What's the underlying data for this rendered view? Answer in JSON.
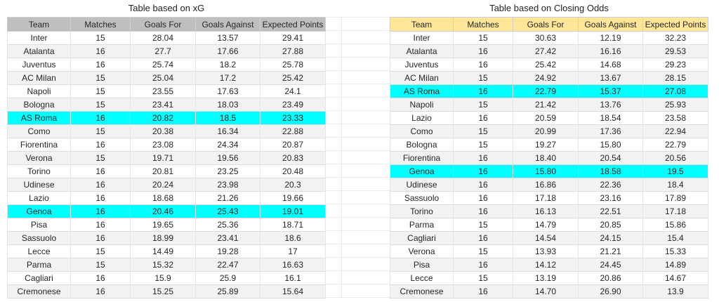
{
  "highlight_color": "#00ffff",
  "band_color": "#f2f2f2",
  "tables": [
    {
      "title": "Table based on xG",
      "header_bg": "#bfbfbf",
      "columns": [
        "Team",
        "Matches",
        "Goals For",
        "Goals Against",
        "Expected Points"
      ],
      "rows": [
        {
          "cells": [
            "Inter",
            "15",
            "28.04",
            "13.57",
            "29.41"
          ],
          "highlight": false
        },
        {
          "cells": [
            "Atalanta",
            "16",
            "27.7",
            "17.66",
            "27.88"
          ],
          "highlight": false
        },
        {
          "cells": [
            "Juventus",
            "16",
            "25.74",
            "18.2",
            "25.78"
          ],
          "highlight": false
        },
        {
          "cells": [
            "AC Milan",
            "15",
            "25.04",
            "17.2",
            "25.42"
          ],
          "highlight": false
        },
        {
          "cells": [
            "Napoli",
            "15",
            "23.55",
            "17.63",
            "24.1"
          ],
          "highlight": false
        },
        {
          "cells": [
            "Bologna",
            "15",
            "23.41",
            "18.03",
            "23.49"
          ],
          "highlight": false
        },
        {
          "cells": [
            "AS Roma",
            "16",
            "20.82",
            "18.5",
            "23.33"
          ],
          "highlight": true
        },
        {
          "cells": [
            "Como",
            "15",
            "20.38",
            "16.34",
            "22.88"
          ],
          "highlight": false
        },
        {
          "cells": [
            "Fiorentina",
            "16",
            "23.08",
            "24.34",
            "20.87"
          ],
          "highlight": false
        },
        {
          "cells": [
            "Verona",
            "15",
            "19.71",
            "19.56",
            "20.83"
          ],
          "highlight": false
        },
        {
          "cells": [
            "Torino",
            "16",
            "20.81",
            "23.25",
            "20.48"
          ],
          "highlight": false
        },
        {
          "cells": [
            "Udinese",
            "16",
            "20.24",
            "23.98",
            "20.3"
          ],
          "highlight": false
        },
        {
          "cells": [
            "Lazio",
            "16",
            "18.68",
            "21.26",
            "19.66"
          ],
          "highlight": false
        },
        {
          "cells": [
            "Genoa",
            "16",
            "20.46",
            "25.43",
            "19.01"
          ],
          "highlight": true
        },
        {
          "cells": [
            "Pisa",
            "16",
            "19.65",
            "25.36",
            "18.71"
          ],
          "highlight": false
        },
        {
          "cells": [
            "Sassuolo",
            "16",
            "18.99",
            "23.41",
            "18.6"
          ],
          "highlight": false
        },
        {
          "cells": [
            "Lecce",
            "15",
            "14.49",
            "19.28",
            "17"
          ],
          "highlight": false
        },
        {
          "cells": [
            "Parma",
            "15",
            "15.32",
            "22.47",
            "16.63"
          ],
          "highlight": false
        },
        {
          "cells": [
            "Cagliari",
            "16",
            "15.9",
            "25.9",
            "16.1"
          ],
          "highlight": false
        },
        {
          "cells": [
            "Cremonese",
            "16",
            "15.25",
            "25.89",
            "15.64"
          ],
          "highlight": false
        }
      ]
    },
    {
      "title": "Table based on Closing Odds",
      "header_bg": "#ffe699",
      "columns": [
        "Team",
        "Matches",
        "Goals For",
        "Goals Against",
        "Expected Points"
      ],
      "rows": [
        {
          "cells": [
            "Inter",
            "15",
            "30.63",
            "12.19",
            "32.23"
          ],
          "highlight": false
        },
        {
          "cells": [
            "Atalanta",
            "16",
            "27.42",
            "16.16",
            "29.53"
          ],
          "highlight": false
        },
        {
          "cells": [
            "Juventus",
            "16",
            "25.42",
            "14.68",
            "29.23"
          ],
          "highlight": false
        },
        {
          "cells": [
            "AC Milan",
            "15",
            "24.92",
            "13.67",
            "28.15"
          ],
          "highlight": false
        },
        {
          "cells": [
            "AS Roma",
            "16",
            "22.79",
            "15.37",
            "27.08"
          ],
          "highlight": true
        },
        {
          "cells": [
            "Napoli",
            "15",
            "21.42",
            "13.76",
            "25.93"
          ],
          "highlight": false
        },
        {
          "cells": [
            "Lazio",
            "16",
            "20.59",
            "18.54",
            "23.58"
          ],
          "highlight": false
        },
        {
          "cells": [
            "Como",
            "15",
            "20.99",
            "17.36",
            "22.94"
          ],
          "highlight": false
        },
        {
          "cells": [
            "Bologna",
            "15",
            "19.27",
            "15.80",
            "22.79"
          ],
          "highlight": false
        },
        {
          "cells": [
            "Fiorentina",
            "16",
            "18.40",
            "20.54",
            "20.56"
          ],
          "highlight": false
        },
        {
          "cells": [
            "Genoa",
            "16",
            "15.80",
            "18.58",
            "19.5"
          ],
          "highlight": true
        },
        {
          "cells": [
            "Udinese",
            "16",
            "16.86",
            "22.36",
            "18.4"
          ],
          "highlight": false
        },
        {
          "cells": [
            "Sassuolo",
            "16",
            "17.18",
            "23.16",
            "17.89"
          ],
          "highlight": false
        },
        {
          "cells": [
            "Torino",
            "16",
            "16.13",
            "22.51",
            "17.18"
          ],
          "highlight": false
        },
        {
          "cells": [
            "Parma",
            "15",
            "14.79",
            "20.85",
            "15.86"
          ],
          "highlight": false
        },
        {
          "cells": [
            "Cagliari",
            "16",
            "14.54",
            "24.15",
            "15.4"
          ],
          "highlight": false
        },
        {
          "cells": [
            "Verona",
            "15",
            "13.93",
            "21.21",
            "15.33"
          ],
          "highlight": false
        },
        {
          "cells": [
            "Pisa",
            "16",
            "14.12",
            "24.45",
            "14.89"
          ],
          "highlight": false
        },
        {
          "cells": [
            "Lecce",
            "15",
            "13.19",
            "20.86",
            "14.67"
          ],
          "highlight": false
        },
        {
          "cells": [
            "Cremonese",
            "16",
            "14.70",
            "26.90",
            "13.9"
          ],
          "highlight": false
        }
      ]
    }
  ]
}
